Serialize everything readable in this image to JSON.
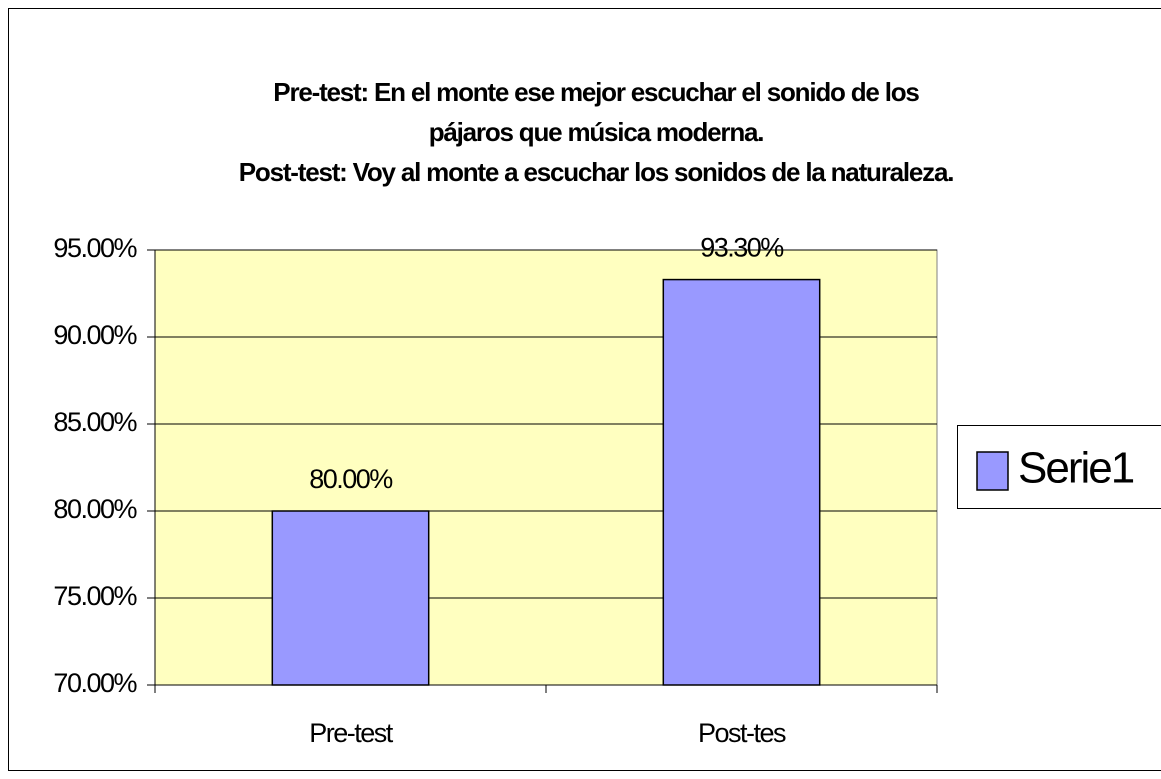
{
  "chart_data": {
    "type": "bar",
    "title": [
      "Pre-test:    En el monte ese mejor escuchar el sonido de los",
      "pájaros  que música moderna.",
      "Post-test:   Voy al monte a escuchar los sonidos de la naturaleza."
    ],
    "categories": [
      "Pre-test",
      "Post-tes"
    ],
    "series": [
      {
        "name": "Serie1",
        "color": "#9999ff",
        "values": [
          80,
          93.3
        ],
        "value_labels": [
          "80.00%",
          "93.30%"
        ]
      }
    ],
    "ylim": [
      70,
      95
    ],
    "yticks": [
      {
        "value": 70,
        "label": "70.00%"
      },
      {
        "value": 75,
        "label": "75.00%"
      },
      {
        "value": 80,
        "label": "80.00%"
      },
      {
        "value": 85,
        "label": "85.00%"
      },
      {
        "value": 90,
        "label": "90.00%"
      },
      {
        "value": 95,
        "label": "95.00%"
      }
    ],
    "grid": true,
    "plot_background": "#ffffc0",
    "legend": "right"
  }
}
